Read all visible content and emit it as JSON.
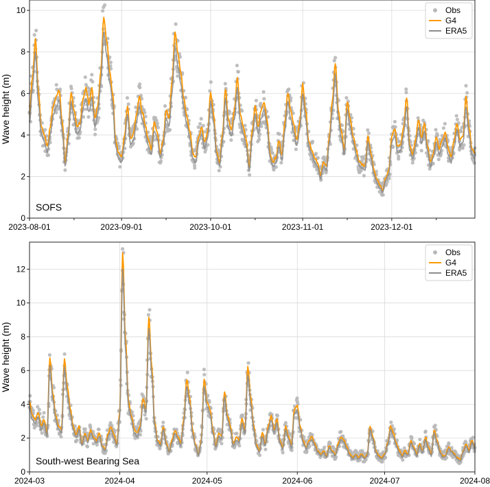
{
  "chart_data": [
    {
      "type": "scatter",
      "panel_label": "SOFS",
      "ylabel": "Wave height (m)",
      "ylim": [
        0,
        10.5
      ],
      "yticks": [
        "0",
        "2",
        "4",
        "6",
        "8",
        "10"
      ],
      "x_range": [
        "2023-08-01",
        "2023-12-29"
      ],
      "xticks": [
        "2023-08-01",
        "2023-09-01",
        "2023-10-01",
        "2023-11-01",
        "2023-12-01"
      ],
      "grid": true,
      "legend_position": "top-right",
      "series": [
        {
          "name": "Obs",
          "kind": "points",
          "color": "#b8b8b8"
        },
        {
          "name": "G4",
          "kind": "line",
          "color": "#ff9900"
        },
        {
          "name": "ERA5",
          "kind": "line",
          "color": "#8c8c8c"
        }
      ],
      "keypoints": [
        [
          "2023-08-01",
          4.8
        ],
        [
          "2023-08-02",
          6.5
        ],
        [
          "2023-08-03",
          8.3
        ],
        [
          "2023-08-04",
          5.8
        ],
        [
          "2023-08-05",
          4.2
        ],
        [
          "2023-08-06",
          3.8
        ],
        [
          "2023-08-07",
          3.3
        ],
        [
          "2023-08-08",
          4.2
        ],
        [
          "2023-08-09",
          5.2
        ],
        [
          "2023-08-10",
          5.6
        ],
        [
          "2023-08-11",
          5.9
        ],
        [
          "2023-08-12",
          4.5
        ],
        [
          "2023-08-13",
          2.6
        ],
        [
          "2023-08-14",
          3.8
        ],
        [
          "2023-08-15",
          5.8
        ],
        [
          "2023-08-16",
          5.0
        ],
        [
          "2023-08-17",
          4.2
        ],
        [
          "2023-08-18",
          4.4
        ],
        [
          "2023-08-19",
          5.5
        ],
        [
          "2023-08-20",
          6.0
        ],
        [
          "2023-08-21",
          5.3
        ],
        [
          "2023-08-22",
          6.0
        ],
        [
          "2023-08-23",
          4.6
        ],
        [
          "2023-08-24",
          5.2
        ],
        [
          "2023-08-25",
          6.8
        ],
        [
          "2023-08-26",
          9.3
        ],
        [
          "2023-08-27",
          8.2
        ],
        [
          "2023-08-28",
          6.8
        ],
        [
          "2023-08-29",
          5.8
        ],
        [
          "2023-08-30",
          3.6
        ],
        [
          "2023-08-31",
          3.0
        ],
        [
          "2023-09-01",
          2.8
        ],
        [
          "2023-09-02",
          3.8
        ],
        [
          "2023-09-03",
          5.2
        ],
        [
          "2023-09-04",
          3.7
        ],
        [
          "2023-09-05",
          3.9
        ],
        [
          "2023-09-06",
          4.8
        ],
        [
          "2023-09-07",
          5.6
        ],
        [
          "2023-09-08",
          4.9
        ],
        [
          "2023-09-09",
          4.3
        ],
        [
          "2023-09-10",
          3.6
        ],
        [
          "2023-09-11",
          3.2
        ],
        [
          "2023-09-12",
          4.4
        ],
        [
          "2023-09-13",
          4.0
        ],
        [
          "2023-09-14",
          3.0
        ],
        [
          "2023-09-15",
          3.6
        ],
        [
          "2023-09-16",
          5.0
        ],
        [
          "2023-09-17",
          4.6
        ],
        [
          "2023-09-18",
          6.3
        ],
        [
          "2023-09-19",
          8.6
        ],
        [
          "2023-09-20",
          7.6
        ],
        [
          "2023-09-21",
          6.7
        ],
        [
          "2023-09-22",
          5.5
        ],
        [
          "2023-09-23",
          4.7
        ],
        [
          "2023-09-24",
          4.0
        ],
        [
          "2023-09-25",
          3.0
        ],
        [
          "2023-09-26",
          2.8
        ],
        [
          "2023-09-27",
          3.8
        ],
        [
          "2023-09-28",
          4.2
        ],
        [
          "2023-09-29",
          3.5
        ],
        [
          "2023-09-30",
          4.0
        ],
        [
          "2023-10-01",
          5.8
        ],
        [
          "2023-10-02",
          4.8
        ],
        [
          "2023-10-03",
          3.1
        ],
        [
          "2023-10-04",
          2.6
        ],
        [
          "2023-10-05",
          3.9
        ],
        [
          "2023-10-06",
          6.0
        ],
        [
          "2023-10-07",
          4.5
        ],
        [
          "2023-10-08",
          4.1
        ],
        [
          "2023-10-09",
          5.0
        ],
        [
          "2023-10-10",
          6.5
        ],
        [
          "2023-10-11",
          4.8
        ],
        [
          "2023-10-12",
          4.2
        ],
        [
          "2023-10-13",
          3.6
        ],
        [
          "2023-10-14",
          2.4
        ],
        [
          "2023-10-15",
          4.0
        ],
        [
          "2023-10-16",
          5.2
        ],
        [
          "2023-10-17",
          4.2
        ],
        [
          "2023-10-18",
          5.0
        ],
        [
          "2023-10-19",
          5.4
        ],
        [
          "2023-10-20",
          4.6
        ],
        [
          "2023-10-21",
          3.0
        ],
        [
          "2023-10-22",
          2.6
        ],
        [
          "2023-10-23",
          2.8
        ],
        [
          "2023-10-24",
          3.6
        ],
        [
          "2023-10-25",
          2.9
        ],
        [
          "2023-10-26",
          4.4
        ],
        [
          "2023-10-27",
          5.8
        ],
        [
          "2023-10-28",
          5.0
        ],
        [
          "2023-10-29",
          4.3
        ],
        [
          "2023-10-30",
          3.6
        ],
        [
          "2023-10-31",
          4.4
        ],
        [
          "2023-11-01",
          6.2
        ],
        [
          "2023-11-02",
          5.0
        ],
        [
          "2023-11-03",
          3.6
        ],
        [
          "2023-11-04",
          3.2
        ],
        [
          "2023-11-05",
          2.8
        ],
        [
          "2023-11-06",
          2.6
        ],
        [
          "2023-11-07",
          2.0
        ],
        [
          "2023-11-08",
          2.6
        ],
        [
          "2023-11-09",
          2.4
        ],
        [
          "2023-11-10",
          3.8
        ],
        [
          "2023-11-11",
          5.4
        ],
        [
          "2023-11-12",
          7.2
        ],
        [
          "2023-11-13",
          5.0
        ],
        [
          "2023-11-14",
          4.0
        ],
        [
          "2023-11-15",
          3.2
        ],
        [
          "2023-11-16",
          5.4
        ],
        [
          "2023-11-17",
          4.6
        ],
        [
          "2023-11-18",
          3.8
        ],
        [
          "2023-11-19",
          3.2
        ],
        [
          "2023-11-20",
          2.6
        ],
        [
          "2023-11-21",
          2.5
        ],
        [
          "2023-11-22",
          2.4
        ],
        [
          "2023-11-23",
          3.8
        ],
        [
          "2023-11-24",
          3.0
        ],
        [
          "2023-11-25",
          2.2
        ],
        [
          "2023-11-26",
          1.8
        ],
        [
          "2023-11-27",
          1.5
        ],
        [
          "2023-11-28",
          1.3
        ],
        [
          "2023-11-29",
          1.9
        ],
        [
          "2023-11-30",
          2.2
        ],
        [
          "2023-12-01",
          3.8
        ],
        [
          "2023-12-02",
          4.1
        ],
        [
          "2023-12-03",
          3.3
        ],
        [
          "2023-12-04",
          3.4
        ],
        [
          "2023-12-05",
          4.2
        ],
        [
          "2023-12-06",
          5.6
        ],
        [
          "2023-12-07",
          3.4
        ],
        [
          "2023-12-08",
          3.0
        ],
        [
          "2023-12-09",
          3.6
        ],
        [
          "2023-12-10",
          4.5
        ],
        [
          "2023-12-11",
          3.7
        ],
        [
          "2023-12-12",
          4.4
        ],
        [
          "2023-12-13",
          3.4
        ],
        [
          "2023-12-14",
          2.6
        ],
        [
          "2023-12-15",
          3.0
        ],
        [
          "2023-12-16",
          3.8
        ],
        [
          "2023-12-17",
          3.2
        ],
        [
          "2023-12-18",
          3.6
        ],
        [
          "2023-12-19",
          4.0
        ],
        [
          "2023-12-20",
          3.2
        ],
        [
          "2023-12-21",
          2.8
        ],
        [
          "2023-12-22",
          3.6
        ],
        [
          "2023-12-23",
          4.4
        ],
        [
          "2023-12-24",
          3.6
        ],
        [
          "2023-12-25",
          3.8
        ],
        [
          "2023-12-26",
          5.6
        ],
        [
          "2023-12-27",
          4.2
        ],
        [
          "2023-12-28",
          3.2
        ],
        [
          "2023-12-29",
          3.0
        ]
      ]
    },
    {
      "type": "scatter",
      "panel_label": "South-west Bearing Sea",
      "ylabel": "Wave height (m)",
      "ylim": [
        0,
        13.6
      ],
      "yticks": [
        "0",
        "2",
        "4",
        "6",
        "8",
        "10",
        "12"
      ],
      "x_range": [
        "2024-03-01",
        "2024-08-01"
      ],
      "xticks": [
        "2024-03",
        "2024-04",
        "2024-05",
        "2024-06",
        "2024-07",
        "2024-08"
      ],
      "grid": true,
      "legend_position": "top-right",
      "series": [
        {
          "name": "Obs",
          "kind": "points",
          "color": "#b8b8b8"
        },
        {
          "name": "G4",
          "kind": "line",
          "color": "#ff9900"
        },
        {
          "name": "ERA5",
          "kind": "line",
          "color": "#8c8c8c"
        }
      ],
      "keypoints": [
        [
          "2024-03-01",
          4.0
        ],
        [
          "2024-03-02",
          3.2
        ],
        [
          "2024-03-03",
          3.0
        ],
        [
          "2024-03-04",
          3.4
        ],
        [
          "2024-03-05",
          2.6
        ],
        [
          "2024-03-06",
          3.0
        ],
        [
          "2024-03-07",
          2.2
        ],
        [
          "2024-03-08",
          6.5
        ],
        [
          "2024-03-09",
          4.5
        ],
        [
          "2024-03-10",
          3.2
        ],
        [
          "2024-03-11",
          2.6
        ],
        [
          "2024-03-12",
          2.4
        ],
        [
          "2024-03-13",
          6.4
        ],
        [
          "2024-03-14",
          4.8
        ],
        [
          "2024-03-15",
          3.6
        ],
        [
          "2024-03-16",
          2.6
        ],
        [
          "2024-03-17",
          2.1
        ],
        [
          "2024-03-18",
          2.6
        ],
        [
          "2024-03-19",
          1.6
        ],
        [
          "2024-03-20",
          2.2
        ],
        [
          "2024-03-21",
          1.8
        ],
        [
          "2024-03-22",
          2.4
        ],
        [
          "2024-03-23",
          2.0
        ],
        [
          "2024-03-24",
          1.8
        ],
        [
          "2024-03-25",
          2.2
        ],
        [
          "2024-03-26",
          1.5
        ],
        [
          "2024-03-27",
          1.3
        ],
        [
          "2024-03-28",
          2.2
        ],
        [
          "2024-03-29",
          2.6
        ],
        [
          "2024-03-30",
          2.1
        ],
        [
          "2024-03-31",
          1.6
        ],
        [
          "2024-04-01",
          3.4
        ],
        [
          "2024-04-02",
          12.5
        ],
        [
          "2024-04-03",
          7.5
        ],
        [
          "2024-04-04",
          4.0
        ],
        [
          "2024-04-05",
          3.2
        ],
        [
          "2024-04-06",
          2.4
        ],
        [
          "2024-04-07",
          2.2
        ],
        [
          "2024-04-08",
          2.6
        ],
        [
          "2024-04-09",
          4.2
        ],
        [
          "2024-04-10",
          3.6
        ],
        [
          "2024-04-11",
          8.8
        ],
        [
          "2024-04-12",
          6.0
        ],
        [
          "2024-04-13",
          2.8
        ],
        [
          "2024-04-14",
          1.8
        ],
        [
          "2024-04-15",
          1.6
        ],
        [
          "2024-04-16",
          2.6
        ],
        [
          "2024-04-17",
          1.6
        ],
        [
          "2024-04-18",
          1.2
        ],
        [
          "2024-04-19",
          1.8
        ],
        [
          "2024-04-20",
          2.4
        ],
        [
          "2024-04-21",
          2.0
        ],
        [
          "2024-04-22",
          1.6
        ],
        [
          "2024-04-23",
          3.0
        ],
        [
          "2024-04-24",
          5.3
        ],
        [
          "2024-04-25",
          4.2
        ],
        [
          "2024-04-26",
          2.4
        ],
        [
          "2024-04-27",
          1.6
        ],
        [
          "2024-04-28",
          1.0
        ],
        [
          "2024-04-29",
          1.8
        ],
        [
          "2024-04-30",
          5.3
        ],
        [
          "2024-05-01",
          4.0
        ],
        [
          "2024-05-02",
          3.6
        ],
        [
          "2024-05-03",
          2.4
        ],
        [
          "2024-05-04",
          1.5
        ],
        [
          "2024-05-05",
          2.2
        ],
        [
          "2024-05-06",
          2.0
        ],
        [
          "2024-05-07",
          4.6
        ],
        [
          "2024-05-08",
          3.2
        ],
        [
          "2024-05-09",
          2.6
        ],
        [
          "2024-05-10",
          1.6
        ],
        [
          "2024-05-11",
          2.0
        ],
        [
          "2024-05-12",
          1.8
        ],
        [
          "2024-05-13",
          3.0
        ],
        [
          "2024-05-14",
          2.4
        ],
        [
          "2024-05-15",
          6.0
        ],
        [
          "2024-05-16",
          4.2
        ],
        [
          "2024-05-17",
          2.6
        ],
        [
          "2024-05-18",
          1.5
        ],
        [
          "2024-05-19",
          1.2
        ],
        [
          "2024-05-20",
          2.2
        ],
        [
          "2024-05-21",
          1.6
        ],
        [
          "2024-05-22",
          2.6
        ],
        [
          "2024-05-23",
          3.2
        ],
        [
          "2024-05-24",
          2.4
        ],
        [
          "2024-05-25",
          3.0
        ],
        [
          "2024-05-26",
          1.8
        ],
        [
          "2024-05-27",
          1.4
        ],
        [
          "2024-05-28",
          2.6
        ],
        [
          "2024-05-29",
          2.0
        ],
        [
          "2024-05-30",
          1.5
        ],
        [
          "2024-05-31",
          3.6
        ],
        [
          "2024-06-01",
          3.8
        ],
        [
          "2024-06-02",
          2.6
        ],
        [
          "2024-06-03",
          1.8
        ],
        [
          "2024-06-04",
          1.4
        ],
        [
          "2024-06-05",
          1.8
        ],
        [
          "2024-06-06",
          2.0
        ],
        [
          "2024-06-07",
          1.6
        ],
        [
          "2024-06-08",
          1.2
        ],
        [
          "2024-06-09",
          1.0
        ],
        [
          "2024-06-10",
          1.2
        ],
        [
          "2024-06-11",
          0.9
        ],
        [
          "2024-06-12",
          1.5
        ],
        [
          "2024-06-13",
          1.2
        ],
        [
          "2024-06-14",
          1.0
        ],
        [
          "2024-06-15",
          1.6
        ],
        [
          "2024-06-16",
          2.0
        ],
        [
          "2024-06-17",
          1.8
        ],
        [
          "2024-06-18",
          1.4
        ],
        [
          "2024-06-19",
          1.0
        ],
        [
          "2024-06-20",
          0.8
        ],
        [
          "2024-06-21",
          1.0
        ],
        [
          "2024-06-22",
          0.8
        ],
        [
          "2024-06-23",
          1.0
        ],
        [
          "2024-06-24",
          0.8
        ],
        [
          "2024-06-25",
          1.0
        ],
        [
          "2024-06-26",
          2.6
        ],
        [
          "2024-06-27",
          2.0
        ],
        [
          "2024-06-28",
          1.2
        ],
        [
          "2024-06-29",
          0.9
        ],
        [
          "2024-06-30",
          0.8
        ],
        [
          "2024-07-01",
          1.0
        ],
        [
          "2024-07-02",
          1.6
        ],
        [
          "2024-07-03",
          2.6
        ],
        [
          "2024-07-04",
          2.2
        ],
        [
          "2024-07-05",
          1.6
        ],
        [
          "2024-07-06",
          1.2
        ],
        [
          "2024-07-07",
          0.9
        ],
        [
          "2024-07-08",
          1.2
        ],
        [
          "2024-07-09",
          1.0
        ],
        [
          "2024-07-10",
          1.8
        ],
        [
          "2024-07-11",
          1.4
        ],
        [
          "2024-07-12",
          1.0
        ],
        [
          "2024-07-13",
          1.6
        ],
        [
          "2024-07-14",
          1.2
        ],
        [
          "2024-07-15",
          2.0
        ],
        [
          "2024-07-16",
          1.4
        ],
        [
          "2024-07-17",
          1.0
        ],
        [
          "2024-07-18",
          2.4
        ],
        [
          "2024-07-19",
          1.8
        ],
        [
          "2024-07-20",
          1.2
        ],
        [
          "2024-07-21",
          0.9
        ],
        [
          "2024-07-22",
          1.0
        ],
        [
          "2024-07-23",
          1.4
        ],
        [
          "2024-07-24",
          1.2
        ],
        [
          "2024-07-25",
          1.0
        ],
        [
          "2024-07-26",
          0.8
        ],
        [
          "2024-07-27",
          0.7
        ],
        [
          "2024-07-28",
          1.2
        ],
        [
          "2024-07-29",
          1.6
        ],
        [
          "2024-07-30",
          1.2
        ],
        [
          "2024-07-31",
          1.8
        ],
        [
          "2024-08-01",
          1.4
        ]
      ]
    }
  ]
}
